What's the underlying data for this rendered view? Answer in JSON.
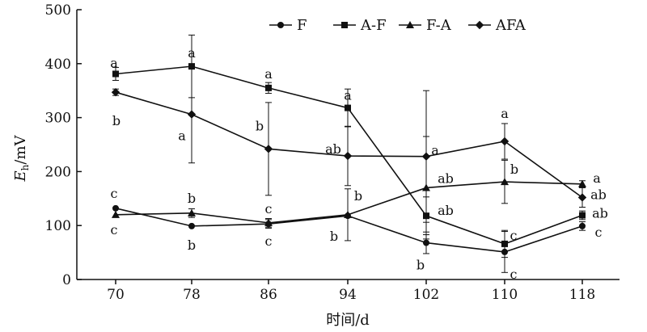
{
  "chart_data": {
    "type": "line",
    "xlabel": "时间/d",
    "ylabel_main": "E",
    "ylabel_sub": "h",
    "ylabel_unit": "/mV",
    "x": [
      70,
      78,
      86,
      94,
      102,
      110,
      118
    ],
    "xticks": [
      "70",
      "78",
      "86",
      "94",
      "102",
      "110",
      "118"
    ],
    "ylim": [
      0,
      500
    ],
    "yticks": [
      "0",
      "100",
      "200",
      "300",
      "400",
      "500"
    ],
    "legend_position": "top",
    "grid": false,
    "series": [
      {
        "name": "F",
        "marker": "circle",
        "values": [
          132,
          99,
          103,
          118,
          68,
          51,
          99
        ],
        "errors": [
          0,
          0,
          8,
          0,
          20,
          38,
          8
        ],
        "labels": [
          "c",
          "b",
          "c",
          "b",
          "b",
          "c",
          "c"
        ]
      },
      {
        "name": "A-F",
        "marker": "square",
        "values": [
          381,
          395,
          355,
          318,
          118,
          66,
          119
        ],
        "errors": [
          12,
          58,
          10,
          35,
          35,
          25,
          8
        ],
        "labels": [
          "a",
          "a",
          "a",
          "a",
          "ab",
          "c",
          "ab"
        ]
      },
      {
        "name": "F-A",
        "marker": "triangle",
        "values": [
          120,
          123,
          105,
          120,
          170,
          181,
          177
        ],
        "errors": [
          0,
          8,
          8,
          48,
          95,
          40,
          6
        ],
        "labels": [
          "c",
          "b",
          "c",
          "b",
          "ab",
          "b",
          "a"
        ]
      },
      {
        "name": "AFA",
        "marker": "diamond",
        "values": [
          347,
          306,
          242,
          229,
          228,
          256,
          152
        ],
        "errors": [
          6,
          90,
          86,
          55,
          122,
          33,
          18
        ],
        "labels": [
          "b",
          "a",
          "b",
          "ab",
          "a",
          "a",
          "ab"
        ]
      }
    ]
  }
}
